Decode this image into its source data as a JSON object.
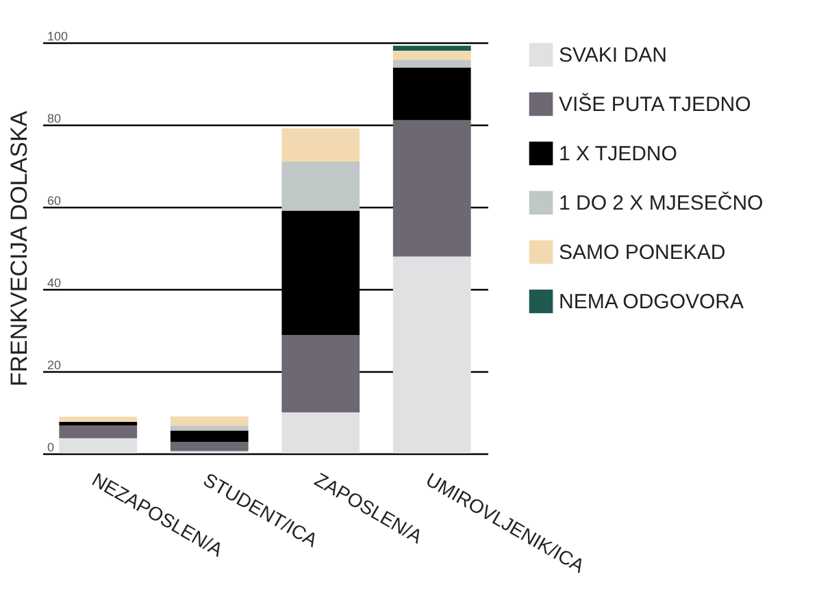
{
  "chart_data": {
    "type": "bar",
    "stacked": true,
    "ylabel": "FRENKVECIJA DOLASKA",
    "categories": [
      "NEZAPOSLEN/A",
      "STUDENT/ICA",
      "ZAPOSLEN/A",
      "UMIROVLJENIK/ICA"
    ],
    "series": [
      {
        "name": "SVAKI DAN",
        "color": "#e0e1e3",
        "values": [
          3.7,
          0.6,
          10,
          47.9
        ]
      },
      {
        "name": "VIŠE PUTA TJEDNO",
        "color": "#6e6774",
        "values": [
          3.1,
          2.2,
          18.8,
          33.2
        ]
      },
      {
        "name": "1 X TJEDNO",
        "color": "#000000",
        "values": [
          0.9,
          2.8,
          30.3,
          12.8
        ]
      },
      {
        "name": "1 DO 2 X MJESEČNO",
        "color": "#bfc8c6",
        "values": [
          0,
          1.2,
          11.9,
          1.9
        ]
      },
      {
        "name": "SAMO PONEKAD",
        "color": "#f2d9b0",
        "values": [
          1.2,
          2.2,
          8.1,
          2.2
        ]
      },
      {
        "name": "NEMA ODGOVORA",
        "color": "#1e5a50",
        "values": [
          0,
          0,
          0,
          1.2
        ]
      }
    ],
    "ylim": [
      0,
      100
    ],
    "yticks": [
      0,
      20,
      40,
      60,
      80,
      100
    ],
    "grid": "y",
    "legend": "right"
  }
}
